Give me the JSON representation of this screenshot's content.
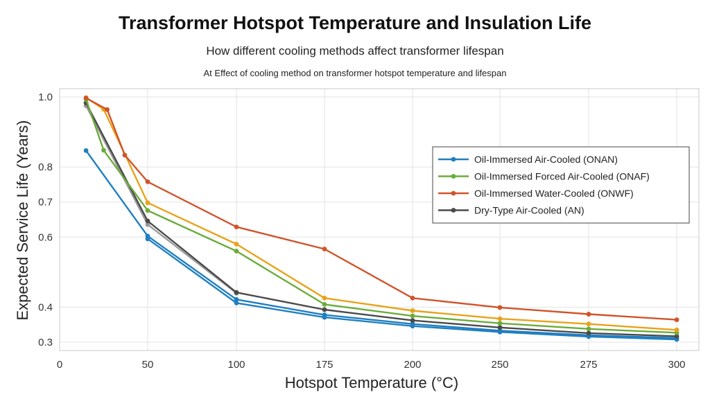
{
  "chart_data": {
    "type": "line",
    "title": "Transformer Hotspot Temperature and Insulation Life",
    "subtitle": "How different cooling methods affect transformer lifespan",
    "caption": "At Effect of cooling method on transformer hotspot temperature and lifespan",
    "xlabel": "Hotspot Temperature (°C)",
    "ylabel": "Expected Service Life (Years)",
    "x_tick_labels": [
      "0",
      "50",
      "100",
      "175",
      "200",
      "250",
      "275",
      "300"
    ],
    "y_ticks": [
      0.3,
      0.4,
      0.6,
      0.7,
      0.8,
      1.0
    ],
    "y_tick_labels": [
      "0.3",
      "0.4",
      "0.6",
      "0.7",
      "0.8",
      "1.0"
    ],
    "ylim": [
      0.3,
      1.0
    ],
    "grid": true,
    "legend_position": "right",
    "series": [
      {
        "name": "Oil-Immersed Air-Cooled (ONAN)",
        "color": "#1f7fc0",
        "points": [
          [
            15,
            0.847
          ],
          [
            50,
            0.603
          ],
          [
            100,
            0.422
          ],
          [
            175,
            0.378
          ],
          [
            200,
            0.352
          ],
          [
            250,
            0.333
          ],
          [
            275,
            0.32
          ],
          [
            300,
            0.312
          ]
        ]
      },
      {
        "name": "Oil-Immersed Forced Air-Cooled (ONAF)",
        "color": "#6aac3a",
        "points": [
          [
            15,
            0.993
          ],
          [
            25,
            0.848
          ],
          [
            50,
            0.676
          ],
          [
            100,
            0.56
          ],
          [
            175,
            0.408
          ],
          [
            200,
            0.375
          ],
          [
            250,
            0.354
          ],
          [
            275,
            0.338
          ],
          [
            300,
            0.327
          ]
        ]
      },
      {
        "name": "Oil-Immersed Water-Cooled (ONWF)",
        "color": "#d0542a",
        "points": [
          [
            15,
            0.997
          ],
          [
            27,
            0.964
          ],
          [
            37,
            0.834
          ],
          [
            50,
            0.758
          ],
          [
            100,
            0.629
          ],
          [
            175,
            0.566
          ],
          [
            200,
            0.426
          ],
          [
            250,
            0.399
          ],
          [
            275,
            0.38
          ],
          [
            300,
            0.364
          ]
        ]
      },
      {
        "name": "Dry-Type Air-Cooled (AN)",
        "color": "#4a4a4a",
        "points": [
          [
            15,
            0.983
          ],
          [
            50,
            0.646
          ],
          [
            100,
            0.442
          ],
          [
            175,
            0.393
          ],
          [
            200,
            0.362
          ],
          [
            250,
            0.342
          ],
          [
            275,
            0.326
          ],
          [
            300,
            0.317
          ]
        ]
      }
    ],
    "extra_traces": [
      {
        "color": "#e8a21a",
        "points": [
          [
            15,
            0.998
          ],
          [
            25,
            0.965
          ],
          [
            50,
            0.698
          ],
          [
            100,
            0.58
          ],
          [
            175,
            0.426
          ],
          [
            200,
            0.39
          ],
          [
            250,
            0.367
          ],
          [
            275,
            0.352
          ],
          [
            300,
            0.335
          ]
        ]
      },
      {
        "color": "#9a9a9a",
        "points": [
          [
            15,
            0.975
          ],
          [
            50,
            0.636
          ],
          [
            100,
            0.44
          ]
        ]
      },
      {
        "color": "#1f7fc0",
        "points": [
          [
            50,
            0.595
          ],
          [
            100,
            0.412
          ],
          [
            175,
            0.371
          ],
          [
            200,
            0.346
          ],
          [
            250,
            0.329
          ],
          [
            275,
            0.316
          ],
          [
            300,
            0.308
          ]
        ]
      }
    ]
  }
}
